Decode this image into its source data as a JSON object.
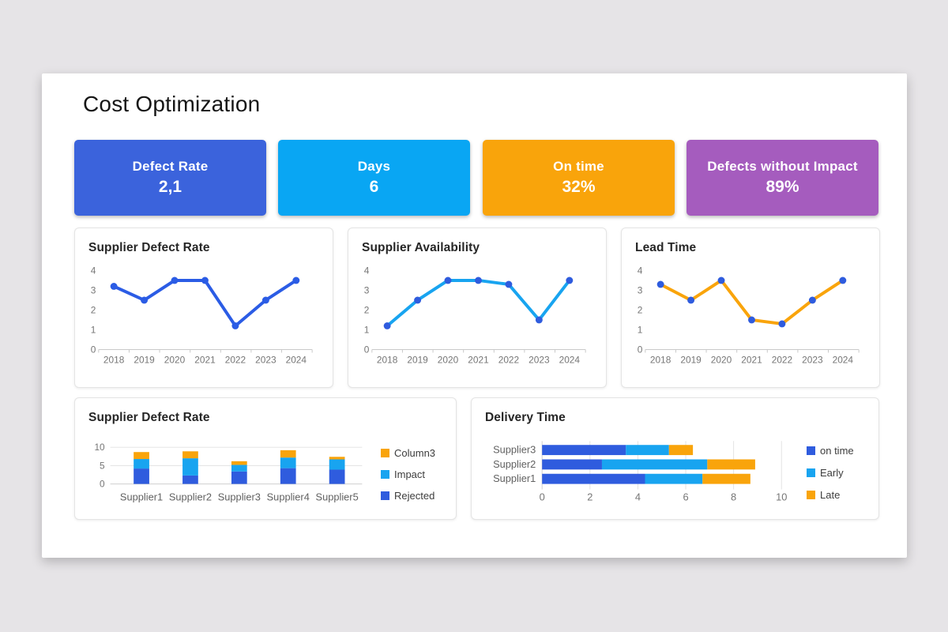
{
  "page": {
    "title": "Cost Optimization"
  },
  "kpi_cards": [
    {
      "label": "Defect Rate",
      "value": "2,1",
      "color": "#3B63DC"
    },
    {
      "label": "Days",
      "value": "6",
      "color": "#09A6F3"
    },
    {
      "label": "On time",
      "value": "32%",
      "color": "#F9A40B"
    },
    {
      "label": "Defects without Impact",
      "value": "89%",
      "color": "#A55CBE"
    }
  ],
  "colors": {
    "dark_blue": "#2F5CDE",
    "light_blue": "#18A4F0",
    "orange": "#F9A40B",
    "axis_text": "#757575",
    "grid": "#E0E0E0"
  },
  "chart_data": [
    {
      "id": "supplier-defect-rate-line",
      "type": "line",
      "title": "Supplier Defect Rate",
      "x": [
        "2018",
        "2019",
        "2020",
        "2021",
        "2022",
        "2023",
        "2024"
      ],
      "values": [
        3.2,
        2.5,
        3.5,
        3.5,
        1.2,
        2.5,
        3.5
      ],
      "ylim": [
        0,
        4
      ],
      "yticks": [
        0,
        1,
        2,
        3,
        4
      ],
      "line_color": "#2B5CE5",
      "marker_color": "#2B5CE5",
      "grid": "off",
      "legend": []
    },
    {
      "id": "supplier-availability-line",
      "type": "line",
      "title": "Supplier Availability",
      "x": [
        "2018",
        "2019",
        "2020",
        "2021",
        "2022",
        "2023",
        "2024"
      ],
      "values": [
        1.2,
        2.5,
        3.5,
        3.5,
        3.3,
        1.5,
        3.5
      ],
      "ylim": [
        0,
        4
      ],
      "yticks": [
        0,
        1,
        2,
        3,
        4
      ],
      "line_color": "#18A4F0",
      "marker_color": "#2F5CDE",
      "grid": "off",
      "legend": []
    },
    {
      "id": "lead-time-line",
      "type": "line",
      "title": "Lead Time",
      "x": [
        "2018",
        "2019",
        "2020",
        "2021",
        "2022",
        "2023",
        "2024"
      ],
      "values": [
        3.3,
        2.5,
        3.5,
        1.5,
        1.3,
        2.5,
        3.5
      ],
      "ylim": [
        0,
        4
      ],
      "yticks": [
        0,
        1,
        2,
        3,
        4
      ],
      "line_color": "#F9A40B",
      "marker_color": "#2F5CDE",
      "grid": "off",
      "legend": []
    },
    {
      "id": "supplier-defect-rate-cols",
      "type": "bar",
      "title": "Supplier Defect Rate",
      "categories": [
        "Supplier1",
        "Supplier2",
        "Supplier3",
        "Supplier4",
        "Supplier5"
      ],
      "series": [
        {
          "name": "Rejected",
          "color": "#2F5CDE",
          "values": [
            4.2,
            2.3,
            3.4,
            4.3,
            3.9
          ]
        },
        {
          "name": "Impact",
          "color": "#18A4F0",
          "values": [
            2.6,
            4.7,
            1.8,
            2.9,
            2.8
          ]
        },
        {
          "name": "Column3",
          "color": "#F9A40B",
          "values": [
            1.9,
            1.9,
            1.0,
            2.0,
            0.7
          ]
        }
      ],
      "stacked": true,
      "ylim": [
        0,
        10
      ],
      "yticks": [
        0,
        5,
        10
      ],
      "grid": "horizontal",
      "legend_position": "right",
      "legend": [
        {
          "label": "Column3",
          "color": "#F9A40B"
        },
        {
          "label": "Impact",
          "color": "#18A4F0"
        },
        {
          "label": "Rejected",
          "color": "#2F5CDE"
        }
      ]
    },
    {
      "id": "delivery-time-hbars",
      "type": "bar",
      "title": "Delivery Time",
      "orientation": "horizontal",
      "categories": [
        "Supplier3",
        "Supplier2",
        "Supplier1"
      ],
      "series": [
        {
          "name": "on time",
          "color": "#2F5CDE",
          "values": [
            3.5,
            2.5,
            4.3
          ]
        },
        {
          "name": "Early",
          "color": "#18A4F0",
          "values": [
            1.8,
            4.4,
            2.4
          ]
        },
        {
          "name": "Late",
          "color": "#F9A40B",
          "values": [
            1.0,
            2.0,
            2.0
          ]
        }
      ],
      "stacked": true,
      "xlim": [
        0,
        10
      ],
      "xticks": [
        0,
        2,
        4,
        6,
        8,
        10
      ],
      "grid": "vertical",
      "legend_position": "right",
      "legend": [
        {
          "label": "on time",
          "color": "#2F5CDE"
        },
        {
          "label": "Early",
          "color": "#18A4F0"
        },
        {
          "label": "Late",
          "color": "#F9A40B"
        }
      ]
    }
  ]
}
